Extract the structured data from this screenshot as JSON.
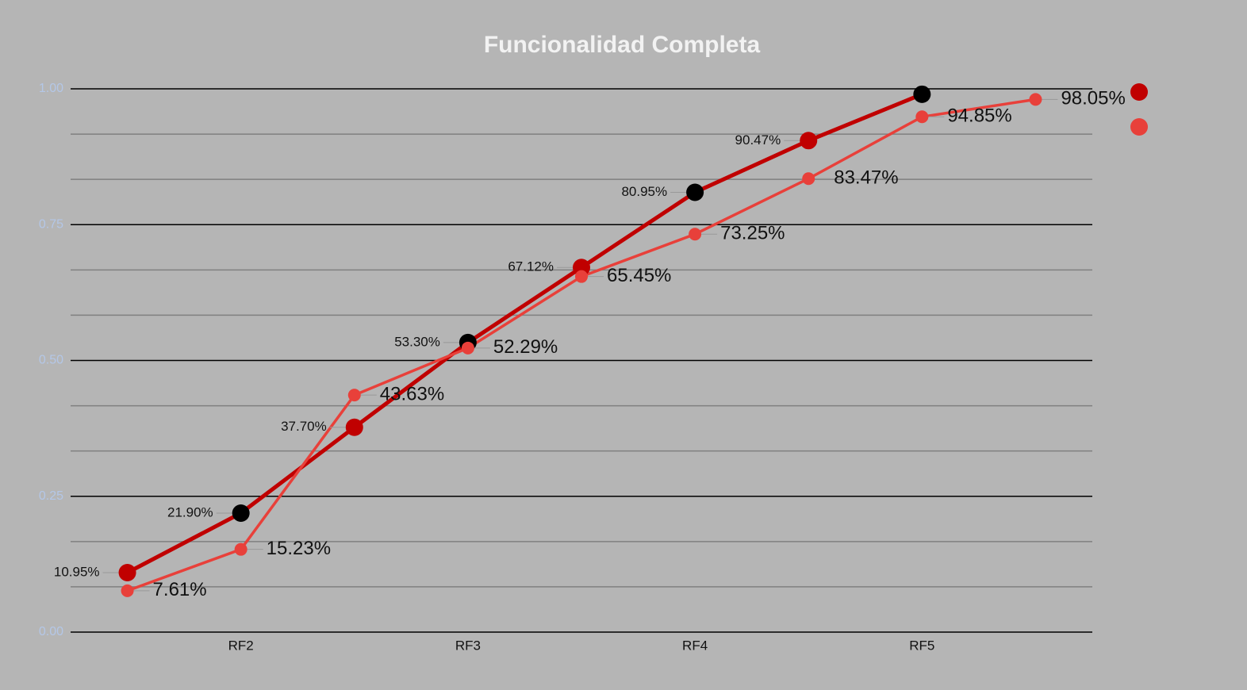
{
  "chart_data": {
    "type": "line",
    "title": "Funcionalidad Completa",
    "categories": [
      null,
      "RF2",
      null,
      "RF3",
      null,
      "RF4",
      null,
      "RF5",
      null
    ],
    "series": [
      {
        "color": "#c00000",
        "marker_colors": [
          "#c00000",
          "#000000",
          "#c00000",
          "#000000",
          "#c00000",
          "#000000",
          "#c00000",
          "#000000"
        ],
        "values": [
          0.1095,
          0.219,
          0.377,
          0.533,
          0.6712,
          0.8095,
          0.9047,
          0.99,
          null
        ],
        "value_labels": [
          "10.95%",
          "21.90%",
          "37.70%",
          "53.30%",
          "67.12%",
          "80.95%",
          "90.47%",
          null,
          null
        ]
      },
      {
        "color": "#e8403a",
        "values": [
          0.0761,
          0.1523,
          0.4363,
          0.5229,
          0.6545,
          0.7325,
          0.8347,
          0.9485,
          0.9805
        ],
        "value_labels": [
          "7.61%",
          "15.23%",
          "43.63%",
          "52.29%",
          "65.45%",
          "73.25%",
          "83.47%",
          "94.85%",
          "98.05%"
        ]
      }
    ],
    "ylim": [
      0,
      1
    ],
    "yticks": [
      {
        "value": 0,
        "label": "0.00"
      },
      {
        "value": 0.25,
        "label": "0.25"
      },
      {
        "value": 0.5,
        "label": "0.50"
      },
      {
        "value": 0.75,
        "label": "0.75"
      },
      {
        "value": 1,
        "label": "1.00"
      }
    ],
    "grid": true
  }
}
